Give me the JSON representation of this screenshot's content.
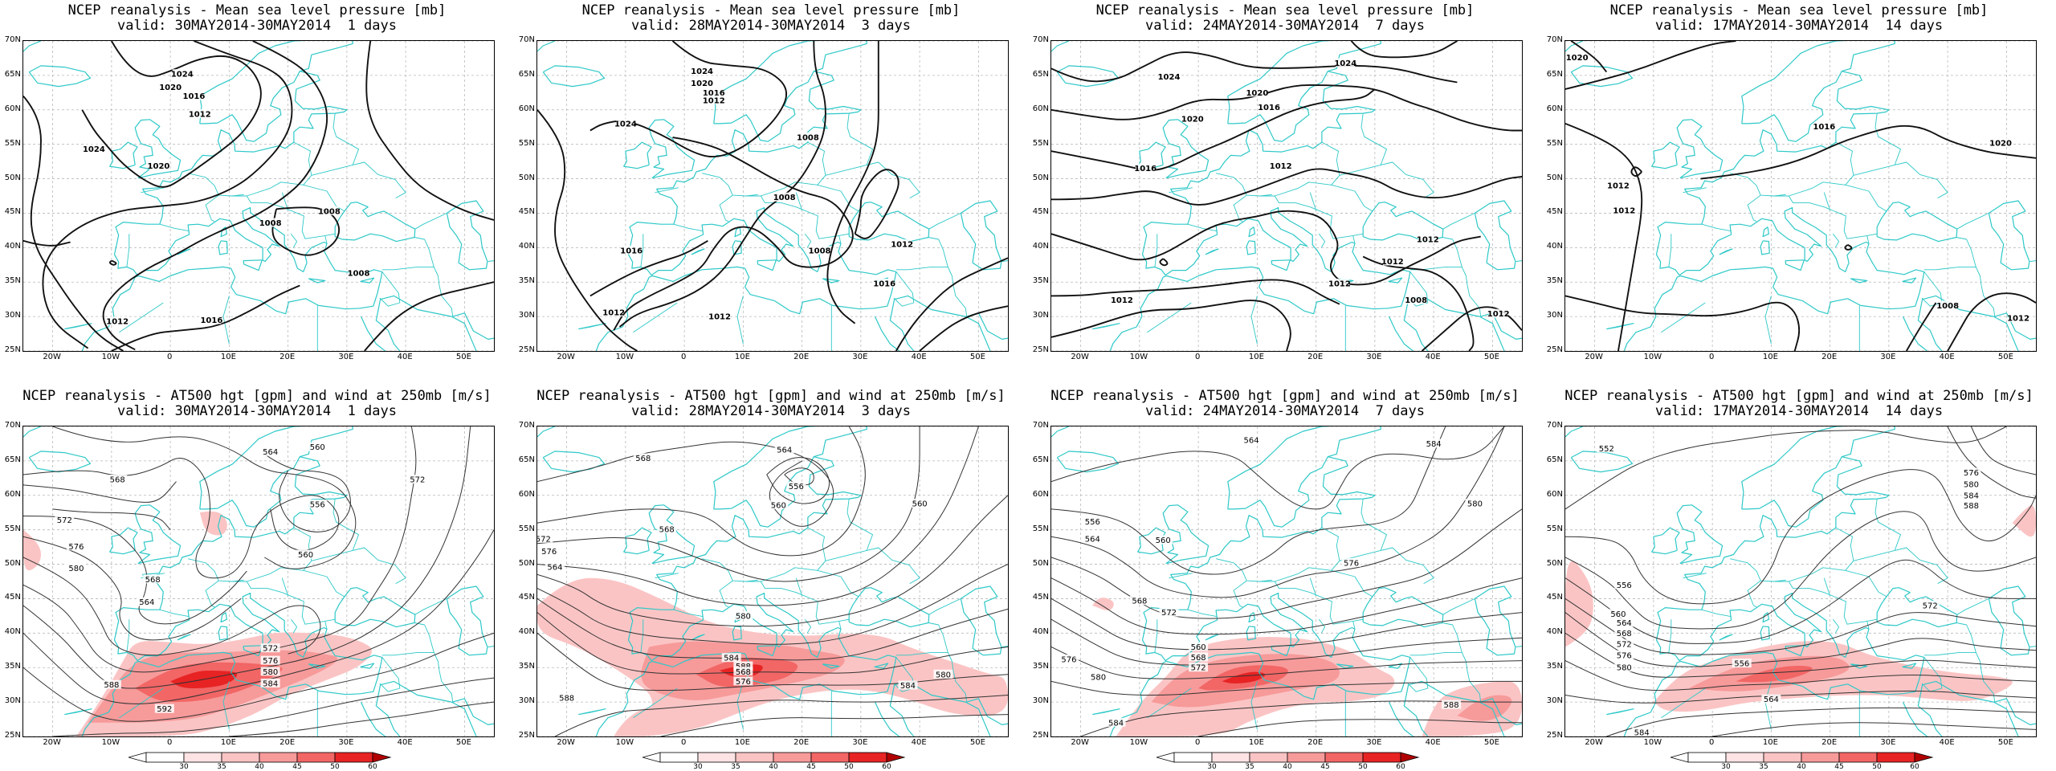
{
  "colors": {
    "coast": "#2ec8c8",
    "contour": "#111111",
    "contour_thin": "#333333",
    "grid": "#b8b8b8",
    "wind_scale": [
      "#ffffff",
      "#fde3e3",
      "#fbc4c4",
      "#f79a9a",
      "#f26666",
      "#e72323",
      "#b00000"
    ]
  },
  "axes": {
    "lat_labels": [
      "70N",
      "65N",
      "60N",
      "55N",
      "50N",
      "45N",
      "40N",
      "35N",
      "30N",
      "25N"
    ],
    "lon_labels": [
      "20W",
      "10W",
      "0",
      "10E",
      "20E",
      "30E",
      "40E",
      "50E"
    ]
  },
  "colorbar": {
    "ticks": [
      "30",
      "35",
      "40",
      "45",
      "50",
      "60"
    ]
  },
  "panels": [
    {
      "title": "NCEP reanalysis - Mean sea level pressure [mb]",
      "valid": "valid: 30MAY2014-30MAY2014  1 days",
      "kind": "mslp",
      "labels": [
        "1024",
        "1020",
        "1016",
        "1012",
        "1024",
        "1020",
        "1008",
        "1008",
        "1008",
        "1012",
        "1016"
      ]
    },
    {
      "title": "NCEP reanalysis - Mean sea level pressure [mb]",
      "valid": "valid: 28MAY2014-30MAY2014  3 days",
      "kind": "mslp",
      "labels": [
        "1024",
        "1020",
        "1016",
        "1012",
        "1024",
        "1008",
        "1008",
        "1012",
        "1008",
        "1016",
        "1016",
        "1012",
        "1012"
      ]
    },
    {
      "title": "NCEP reanalysis - Mean sea level pressure [mb]",
      "valid": "valid: 24MAY2014-30MAY2014  7 days",
      "kind": "mslp",
      "labels": [
        "1024",
        "1024",
        "1020",
        "1016",
        "1020",
        "1016",
        "1012",
        "1012",
        "1012",
        "1012",
        "1008",
        "1012",
        "1012"
      ]
    },
    {
      "title": "NCEP reanalysis - Mean sea level pressure [mb]",
      "valid": "valid: 17MAY2014-30MAY2014  14 days",
      "kind": "mslp",
      "labels": [
        "1020",
        "1016",
        "1012",
        "1020",
        "1012",
        "1008",
        "1012"
      ]
    },
    {
      "title": "NCEP reanalysis - AT500 hgt [gpm] and wind at 250mb [m/s]",
      "valid": "valid: 30MAY2014-30MAY2014  1 days",
      "kind": "z500",
      "labels": [
        "564",
        "560",
        "568",
        "572",
        "576",
        "580",
        "568",
        "564",
        "556",
        "560",
        "572",
        "588",
        "592",
        "584",
        "580",
        "576",
        "572"
      ]
    },
    {
      "title": "NCEP reanalysis - AT500 hgt [gpm] and wind at 250mb [m/s]",
      "valid": "valid: 28MAY2014-30MAY2014  3 days",
      "kind": "z500",
      "labels": [
        "568",
        "564",
        "560",
        "556",
        "568",
        "572",
        "576",
        "564",
        "560",
        "580",
        "584",
        "588",
        "568",
        "576",
        "580",
        "584",
        "588"
      ]
    },
    {
      "title": "NCEP reanalysis - AT500 hgt [gpm] and wind at 250mb [m/s]",
      "valid": "valid: 24MAY2014-30MAY2014  7 days",
      "kind": "z500",
      "labels": [
        "564",
        "556",
        "560",
        "564",
        "568",
        "572",
        "576",
        "580",
        "584",
        "560",
        "568",
        "572",
        "576",
        "580",
        "584",
        "588"
      ]
    },
    {
      "title": "NCEP reanalysis - AT500 hgt [gpm] and wind at 250mb [m/s]",
      "valid": "valid: 17MAY2014-30MAY2014  14 days",
      "kind": "z500",
      "labels": [
        "552",
        "556",
        "560",
        "564",
        "568",
        "572",
        "576",
        "580",
        "584",
        "572",
        "576",
        "580",
        "584",
        "588",
        "556",
        "564"
      ]
    }
  ]
}
